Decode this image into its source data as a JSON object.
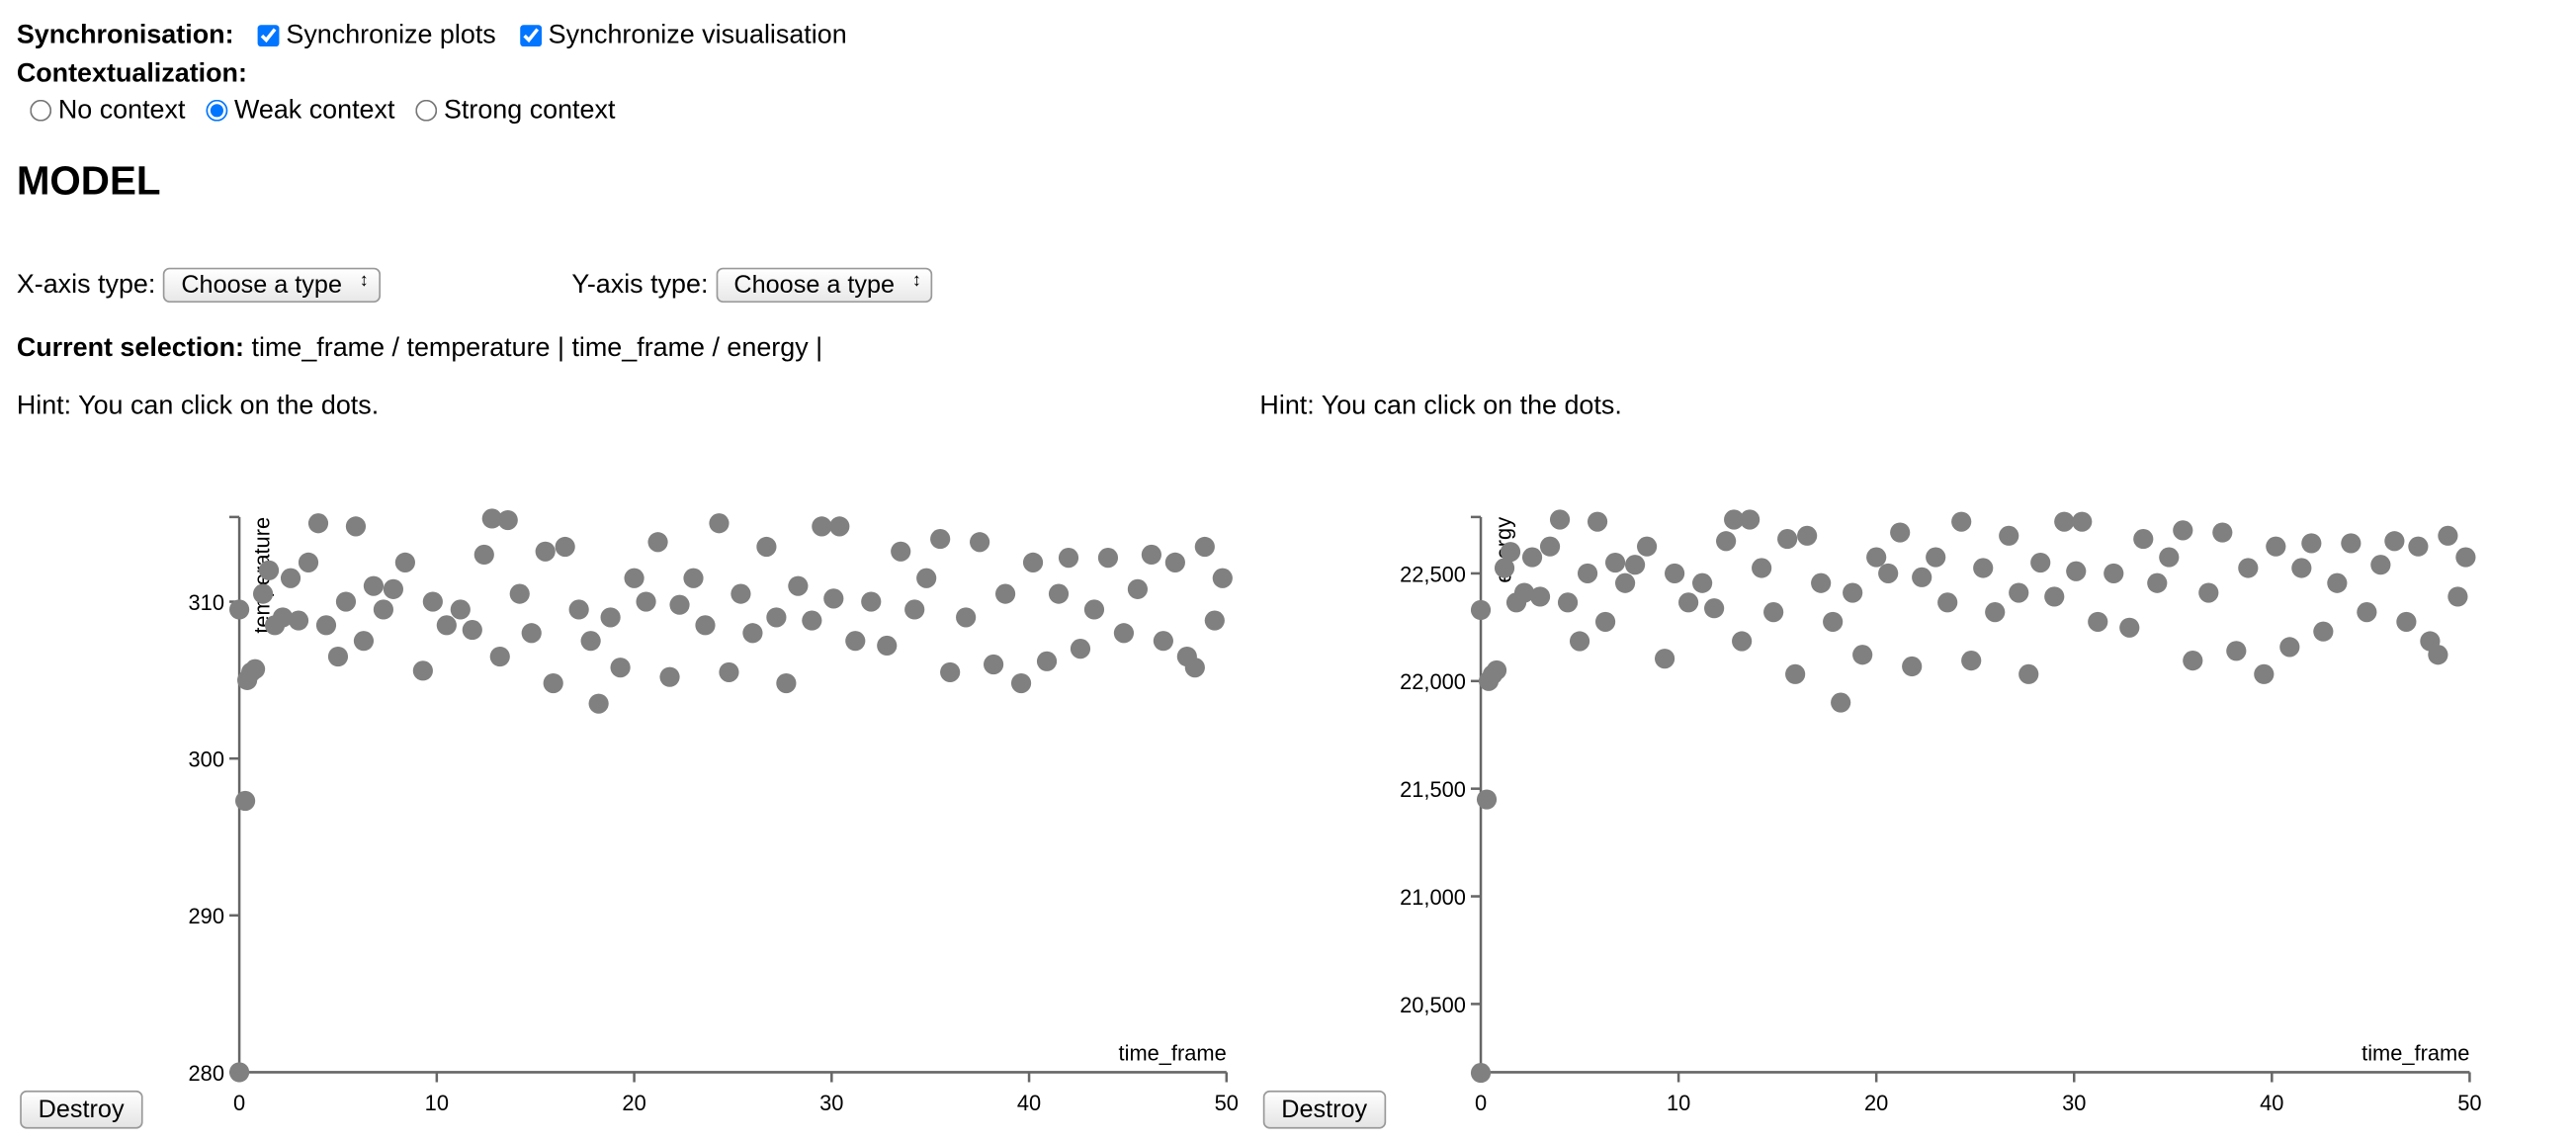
{
  "synchronisation": {
    "label": "Synchronisation:",
    "options": [
      "Synchronize plots",
      "Synchronize visualisation"
    ]
  },
  "contextualization": {
    "label": "Contextualization:",
    "options": [
      "No context",
      "Weak context",
      "Strong context"
    ]
  },
  "heading": "MODEL",
  "x_axis_type": {
    "label": "X-axis type:",
    "select": "Choose a type"
  },
  "y_axis_type": {
    "label": "Y-axis type:",
    "select": "Choose a type"
  },
  "current_selection": {
    "label": "Current selection:",
    "text": "time_frame / temperature | time_frame / energy |"
  },
  "panels": [
    {
      "hint": "Hint: You can click on the dots.",
      "button": "Destroy",
      "chart_data": {
        "type": "scatter",
        "x_label": "time_frame",
        "y_label": "temperature",
        "color": "#808080",
        "xlim": [
          0,
          50
        ],
        "xticks": [
          0,
          10,
          20,
          30,
          40,
          50
        ],
        "ylim": [
          280,
          315.4
        ],
        "yticks": [
          280,
          290,
          300,
          310
        ],
        "x": [
          0,
          0,
          0.3,
          0.4,
          0.6,
          0.8,
          1.2,
          1.5,
          1.8,
          2.2,
          2.6,
          3,
          3.5,
          4,
          4.4,
          5,
          5.4,
          5.9,
          6.3,
          6.8,
          7.3,
          7.8,
          8.4,
          9.3,
          9.8,
          10.5,
          11.2,
          11.8,
          12.4,
          12.8,
          13.2,
          13.6,
          14.2,
          14.8,
          15.5,
          15.9,
          16.5,
          17.2,
          17.8,
          18.2,
          18.8,
          19.3,
          20,
          20.6,
          21.2,
          21.8,
          22.3,
          23,
          23.6,
          24.3,
          24.8,
          25.4,
          26,
          26.7,
          27.2,
          27.7,
          28.3,
          29,
          29.5,
          30.1,
          30.4,
          31.2,
          32,
          32.8,
          33.5,
          34.2,
          34.8,
          35.5,
          36,
          36.8,
          37.5,
          38.2,
          38.8,
          39.6,
          40.2,
          40.9,
          41.5,
          42,
          42.6,
          43.3,
          44,
          44.8,
          45.5,
          46.2,
          46.8,
          47.4,
          48,
          48.4,
          48.9,
          49.4,
          49.8
        ],
        "values": [
          309.5,
          280,
          297.3,
          305,
          305.5,
          305.7,
          310.5,
          312,
          308.5,
          309,
          311.5,
          308.8,
          312.5,
          315,
          308.5,
          306.5,
          310,
          314.8,
          307.5,
          311,
          309.5,
          310.8,
          312.5,
          305.6,
          310,
          308.5,
          309.5,
          308.2,
          313,
          315.3,
          306.5,
          315.2,
          310.5,
          308,
          313.2,
          304.8,
          313.5,
          309.5,
          307.5,
          303.5,
          309,
          305.8,
          311.5,
          310,
          313.8,
          305.2,
          309.8,
          311.5,
          308.5,
          315,
          305.5,
          310.5,
          308,
          313.5,
          309,
          304.8,
          311,
          308.8,
          314.8,
          310.2,
          314.8,
          307.5,
          310,
          307.2,
          313.2,
          309.5,
          311.5,
          314,
          305.5,
          309,
          313.8,
          306,
          310.5,
          304.8,
          312.5,
          306.2,
          310.5,
          312.8,
          307,
          309.5,
          312.8,
          308,
          310.8,
          313,
          307.5,
          312.5,
          306.5,
          305.8,
          313.5,
          308.8,
          311.5
        ]
      }
    },
    {
      "hint": "Hint: You can click on the dots.",
      "button": "Destroy",
      "chart_data": {
        "type": "scatter",
        "x_label": "time_frame",
        "y_label": "energy",
        "color": "#808080",
        "xlim": [
          0,
          50
        ],
        "xticks": [
          0,
          10,
          20,
          30,
          40,
          50
        ],
        "ylim": [
          20183,
          22762
        ],
        "yticks": [
          {
            "value": 20500,
            "label": "20,500"
          },
          {
            "value": 21000,
            "label": "21,000"
          },
          {
            "value": 21500,
            "label": "21,500"
          },
          {
            "value": 22000,
            "label": "22,000"
          },
          {
            "value": 22500,
            "label": "22,500"
          }
        ],
        "x": [
          0,
          0,
          0.3,
          0.4,
          0.6,
          0.8,
          1.2,
          1.5,
          1.8,
          2.2,
          2.6,
          3,
          3.5,
          4,
          4.4,
          5,
          5.4,
          5.9,
          6.3,
          6.8,
          7.3,
          7.8,
          8.4,
          9.3,
          9.8,
          10.5,
          11.2,
          11.8,
          12.4,
          12.8,
          13.2,
          13.6,
          14.2,
          14.8,
          15.5,
          15.9,
          16.5,
          17.2,
          17.8,
          18.2,
          18.8,
          19.3,
          20,
          20.6,
          21.2,
          21.8,
          22.3,
          23,
          23.6,
          24.3,
          24.8,
          25.4,
          26,
          26.7,
          27.2,
          27.7,
          28.3,
          29,
          29.5,
          30.1,
          30.4,
          31.2,
          32,
          32.8,
          33.5,
          34.2,
          34.8,
          35.5,
          36,
          36.8,
          37.5,
          38.2,
          38.8,
          39.6,
          40.2,
          40.9,
          41.5,
          42,
          42.6,
          43.3,
          44,
          44.8,
          45.5,
          46.2,
          46.8,
          47.4,
          48,
          48.4,
          48.9,
          49.4,
          49.8
        ],
        "values": [
          22330,
          20180,
          21450,
          22000,
          22030,
          22050,
          22525,
          22600,
          22365,
          22410,
          22575,
          22392,
          22625,
          22750,
          22365,
          22185,
          22500,
          22740,
          22275,
          22550,
          22455,
          22540,
          22625,
          22104,
          22500,
          22365,
          22455,
          22338,
          22650,
          22750,
          22185,
          22750,
          22525,
          22320,
          22660,
          22032,
          22675,
          22455,
          22275,
          21900,
          22410,
          22122,
          22575,
          22500,
          22690,
          22068,
          22482,
          22575,
          22365,
          22740,
          22095,
          22525,
          22320,
          22675,
          22410,
          22032,
          22550,
          22392,
          22740,
          22510,
          22740,
          22275,
          22500,
          22248,
          22660,
          22455,
          22575,
          22700,
          22095,
          22410,
          22690,
          22140,
          22525,
          22032,
          22625,
          22158,
          22525,
          22640,
          22230,
          22455,
          22640,
          22320,
          22540,
          22650,
          22275,
          22625,
          22185,
          22122,
          22675,
          22392,
          22575
        ]
      }
    }
  ]
}
